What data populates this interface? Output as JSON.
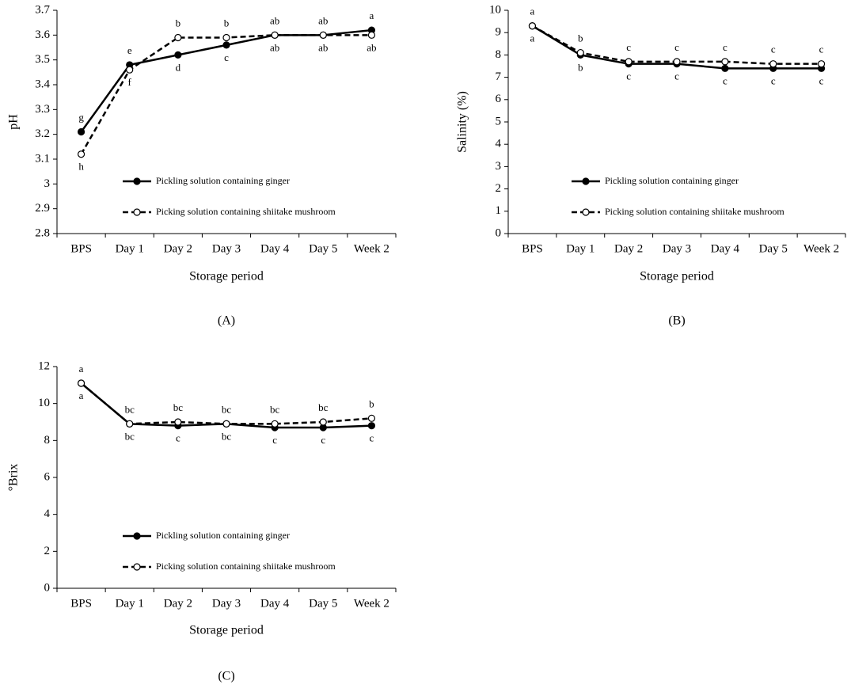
{
  "chart_data": [
    {
      "type": "line",
      "panel_label": "(A)",
      "x_label": "Storage period",
      "y_label": "pH",
      "categories": [
        "BPS",
        "Day 1",
        "Day 2",
        "Day 3",
        "Day 4",
        "Day 5",
        "Week 2"
      ],
      "ylim": [
        2.8,
        3.7
      ],
      "yticks": [
        2.8,
        2.9,
        3,
        3.1,
        3.2,
        3.3,
        3.4,
        3.5,
        3.6,
        3.7
      ],
      "series": [
        {
          "name": "Pickling solution containing ginger",
          "color": "#000000",
          "line_style": "solid",
          "marker_fill": "#000000",
          "values": [
            3.21,
            3.48,
            3.52,
            3.56,
            3.6,
            3.6,
            3.62
          ],
          "letters": [
            "g",
            "e",
            "d",
            "c",
            "ab",
            "ab",
            "a"
          ]
        },
        {
          "name": "Picking solution containing shiitake mushroom",
          "color": "#000000",
          "line_style": "dashed",
          "marker_fill": "#ffffff",
          "values": [
            3.12,
            3.46,
            3.59,
            3.59,
            3.6,
            3.6,
            3.6
          ],
          "letters": [
            "h",
            "f",
            "b",
            "b",
            "ab",
            "ab",
            "ab"
          ]
        }
      ]
    },
    {
      "type": "line",
      "panel_label": "(B)",
      "x_label": "Storage period",
      "y_label": "Salinity (%)",
      "categories": [
        "BPS",
        "Day 1",
        "Day 2",
        "Day 3",
        "Day 4",
        "Day 5",
        "Week 2"
      ],
      "ylim": [
        0,
        10
      ],
      "yticks": [
        0,
        1,
        2,
        3,
        4,
        5,
        6,
        7,
        8,
        9,
        10
      ],
      "series": [
        {
          "name": "Pickling solution containing ginger",
          "color": "#000000",
          "line_style": "solid",
          "marker_fill": "#000000",
          "values": [
            9.3,
            8.0,
            7.6,
            7.6,
            7.4,
            7.4,
            7.4
          ],
          "letters": [
            "a",
            "b",
            "c",
            "c",
            "c",
            "c",
            "c"
          ]
        },
        {
          "name": "Picking solution containing shiitake mushroom",
          "color": "#000000",
          "line_style": "dashed",
          "marker_fill": "#ffffff",
          "values": [
            9.3,
            8.1,
            7.7,
            7.7,
            7.7,
            7.6,
            7.6
          ],
          "letters": [
            "a",
            "b",
            "c",
            "c",
            "c",
            "c",
            "c"
          ]
        }
      ]
    },
    {
      "type": "line",
      "panel_label": "(C)",
      "x_label": "Storage period",
      "y_label": "°Brix",
      "categories": [
        "BPS",
        "Day 1",
        "Day 2",
        "Day 3",
        "Day 4",
        "Day 5",
        "Week 2"
      ],
      "ylim": [
        0,
        12
      ],
      "yticks": [
        0,
        2,
        4,
        6,
        8,
        10,
        12
      ],
      "series": [
        {
          "name": "Pickling solution containing ginger",
          "color": "#000000",
          "line_style": "solid",
          "marker_fill": "#000000",
          "values": [
            11.1,
            8.9,
            8.8,
            8.9,
            8.7,
            8.7,
            8.8
          ],
          "letters": [
            "a",
            "bc",
            "c",
            "bc",
            "c",
            "c",
            "c"
          ]
        },
        {
          "name": "Picking solution containing shiitake mushroom",
          "color": "#000000",
          "line_style": "dashed",
          "marker_fill": "#ffffff",
          "values": [
            11.1,
            8.9,
            9.0,
            8.9,
            8.9,
            9.0,
            9.2
          ],
          "letters": [
            "a",
            "bc",
            "bc",
            "bc",
            "bc",
            "bc",
            "b"
          ]
        }
      ]
    }
  ]
}
